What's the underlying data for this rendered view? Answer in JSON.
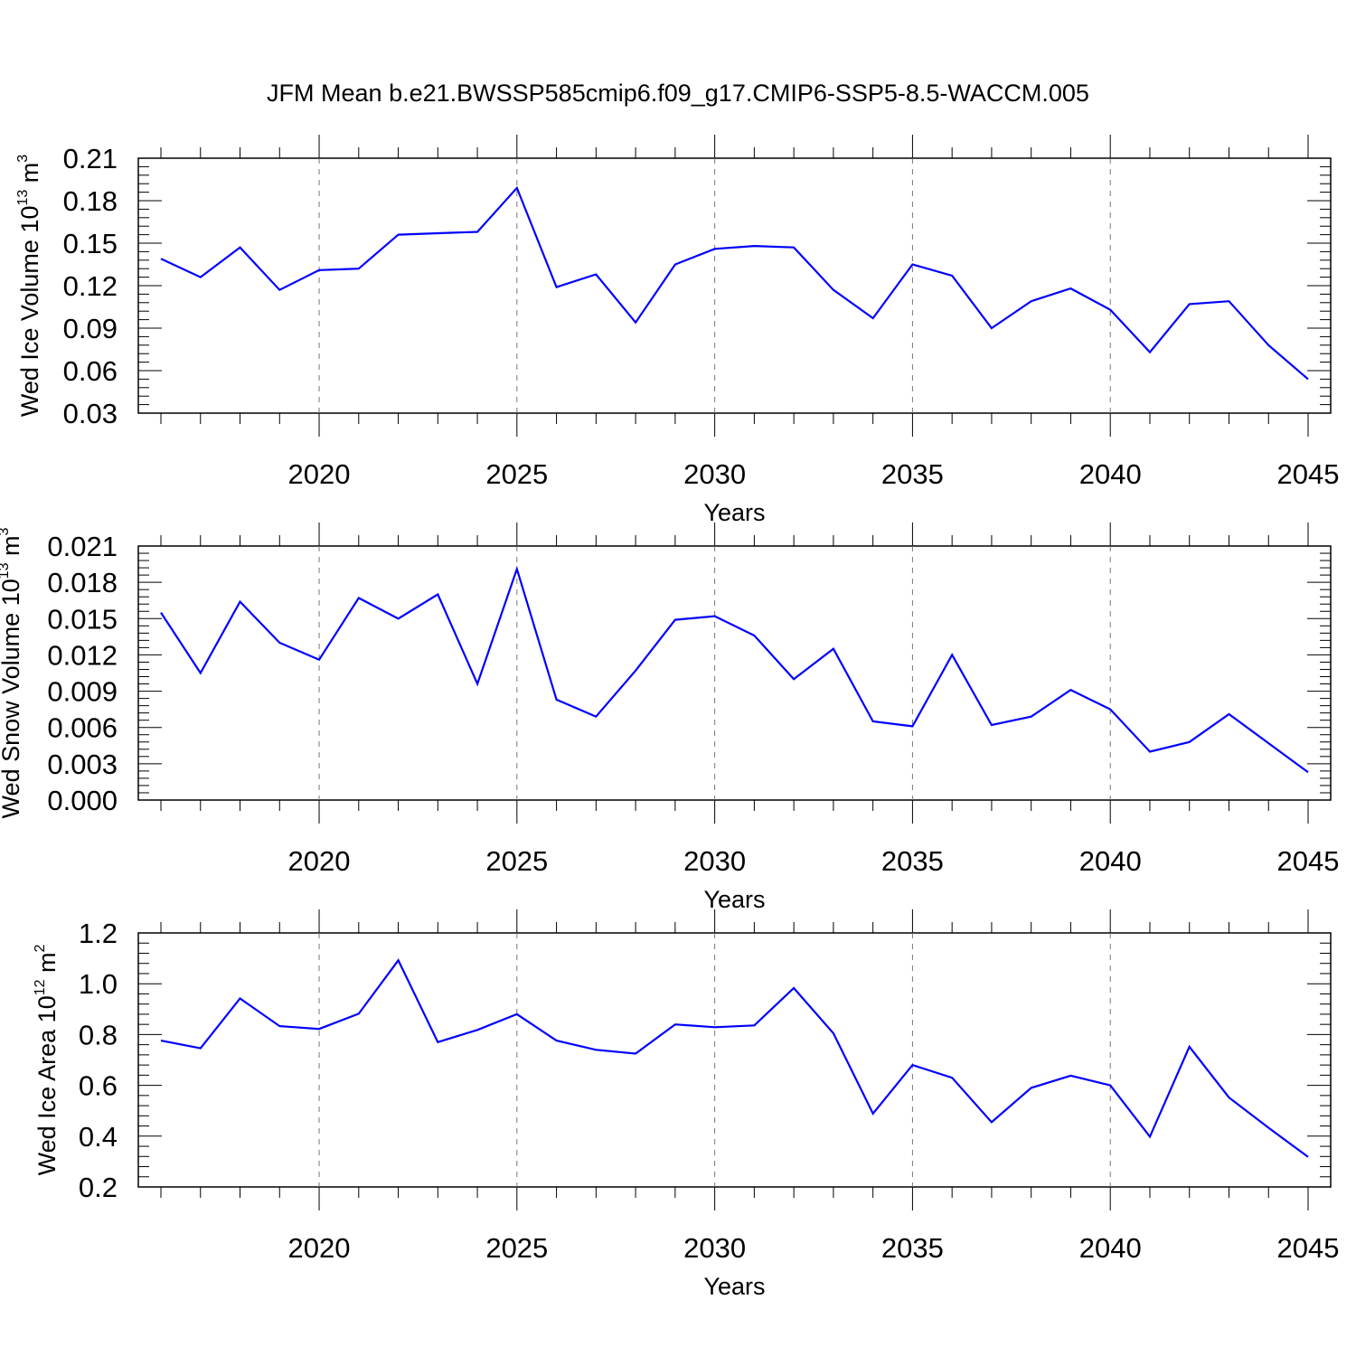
{
  "figure": {
    "title": "JFM Mean b.e21.BWSSP585cmip6.f09_g17.CMIP6-SSP5-8.5-WACCM.005",
    "line_color": "#0000ff",
    "grid_color": "#777777",
    "axis_color": "#000000"
  },
  "chart_data": [
    {
      "type": "line",
      "xlabel": "Years",
      "ylabel": {
        "text": "Wed Ice Volume 10",
        "exp": "13",
        "unit": " m",
        "unit_exp": "3"
      },
      "xlim": [
        2016,
        2045
      ],
      "ylim": [
        0.03,
        0.21
      ],
      "xticks": [
        "2020",
        "2025",
        "2030",
        "2035",
        "2040",
        "2045"
      ],
      "yticks": [
        "0.03",
        "0.06",
        "0.09",
        "0.12",
        "0.15",
        "0.18",
        "0.21"
      ],
      "grid": "dashed vertical at major x ticks",
      "x": [
        2016,
        2017,
        2018,
        2019,
        2020,
        2021,
        2022,
        2023,
        2024,
        2025,
        2026,
        2027,
        2028,
        2029,
        2030,
        2031,
        2032,
        2033,
        2034,
        2035,
        2036,
        2037,
        2038,
        2039,
        2040,
        2041,
        2042,
        2043,
        2044,
        2045
      ],
      "values": [
        0.139,
        0.126,
        0.147,
        0.117,
        0.131,
        0.132,
        0.156,
        0.157,
        0.158,
        0.189,
        0.119,
        0.128,
        0.094,
        0.135,
        0.146,
        0.148,
        0.147,
        0.117,
        0.097,
        0.135,
        0.127,
        0.09,
        0.109,
        0.118,
        0.103,
        0.073,
        0.107,
        0.109,
        0.078,
        0.054
      ]
    },
    {
      "type": "line",
      "xlabel": "Years",
      "ylabel": {
        "text": "Wed Snow Volume 10",
        "exp": "13",
        "unit": " m",
        "unit_exp": "3"
      },
      "xlim": [
        2016,
        2045
      ],
      "ylim": [
        0.0,
        0.021
      ],
      "xticks": [
        "2020",
        "2025",
        "2030",
        "2035",
        "2040",
        "2045"
      ],
      "yticks": [
        "0.000",
        "0.003",
        "0.006",
        "0.009",
        "0.012",
        "0.015",
        "0.018",
        "0.021"
      ],
      "grid": "dashed vertical at major x ticks",
      "x": [
        2016,
        2017,
        2018,
        2019,
        2020,
        2021,
        2022,
        2023,
        2024,
        2025,
        2026,
        2027,
        2028,
        2029,
        2030,
        2031,
        2032,
        2033,
        2034,
        2035,
        2036,
        2037,
        2038,
        2039,
        2040,
        2041,
        2042,
        2043,
        2044,
        2045
      ],
      "values": [
        0.0155,
        0.0105,
        0.0164,
        0.013,
        0.0116,
        0.0167,
        0.015,
        0.017,
        0.0096,
        0.0191,
        0.0083,
        0.0069,
        0.0107,
        0.0149,
        0.0152,
        0.0136,
        0.01,
        0.0125,
        0.0065,
        0.0061,
        0.012,
        0.0062,
        0.0069,
        0.0091,
        0.0075,
        0.004,
        0.0048,
        0.0071,
        0.0047,
        0.0023
      ]
    },
    {
      "type": "line",
      "xlabel": "Years",
      "ylabel": {
        "text": "Wed Ice Area 10",
        "exp": "12",
        "unit": " m",
        "unit_exp": "2"
      },
      "xlim": [
        2016,
        2045
      ],
      "ylim": [
        0.2,
        1.2
      ],
      "xticks": [
        "2020",
        "2025",
        "2030",
        "2035",
        "2040",
        "2045"
      ],
      "yticks": [
        "0.2",
        "0.4",
        "0.6",
        "0.8",
        "1.0",
        "1.2"
      ],
      "grid": "dashed vertical at major x ticks",
      "x": [
        2016,
        2017,
        2018,
        2019,
        2020,
        2021,
        2022,
        2023,
        2024,
        2025,
        2026,
        2027,
        2028,
        2029,
        2030,
        2031,
        2032,
        2033,
        2034,
        2035,
        2036,
        2037,
        2038,
        2039,
        2040,
        2041,
        2042,
        2043,
        2044,
        2045
      ],
      "values": [
        0.776,
        0.746,
        0.942,
        0.833,
        0.822,
        0.882,
        1.092,
        0.77,
        0.818,
        0.88,
        0.776,
        0.74,
        0.725,
        0.84,
        0.829,
        0.836,
        0.983,
        0.805,
        0.489,
        0.68,
        0.63,
        0.455,
        0.59,
        0.638,
        0.6,
        0.398,
        0.752,
        0.552,
        0.433,
        0.318
      ]
    }
  ]
}
